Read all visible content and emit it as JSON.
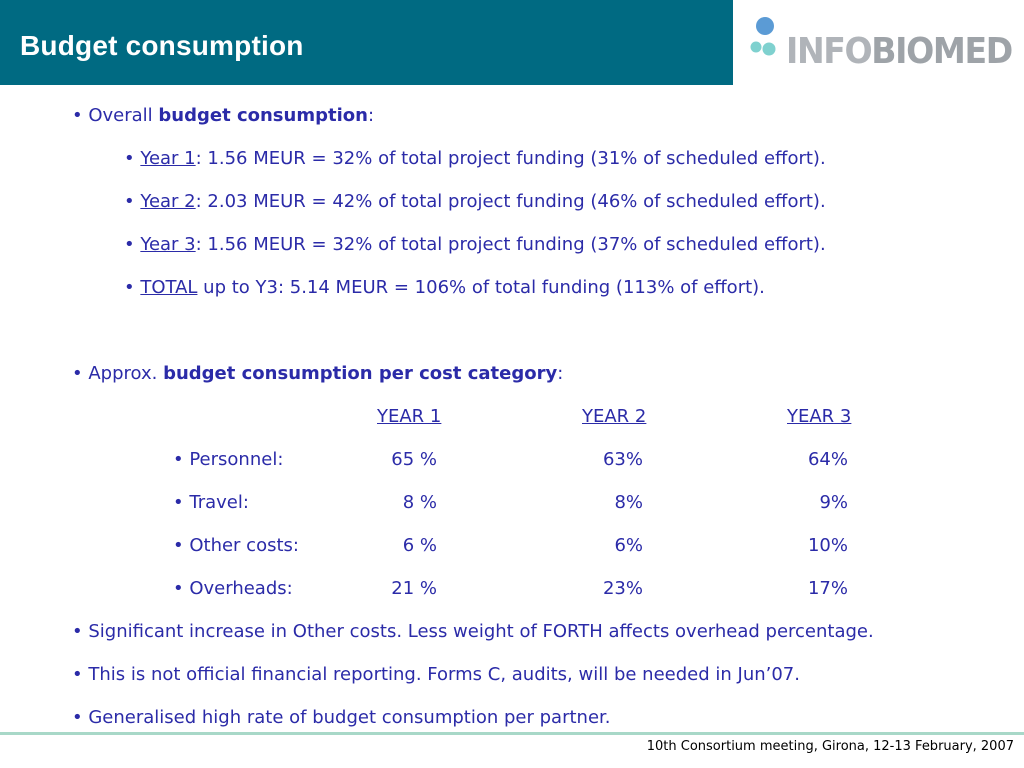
{
  "header": {
    "title": "Budget consumption"
  },
  "logo": {
    "text_light": "INFO",
    "text_bold": "BIOMED",
    "accent_blue": "#5b9bd5",
    "accent_teal": "#7fd1cf"
  },
  "colors": {
    "title_bar": "#006a82",
    "text": "#2b2ba8",
    "footer_line": "#a8d8c8"
  },
  "overall": {
    "prefix": "Overall ",
    "bold": "budget consumption",
    "suffix": ":",
    "items": [
      {
        "label": "Year 1",
        "text": ": 1.56 MEUR = 32% of total project funding (31% of scheduled effort)."
      },
      {
        "label": "Year 2",
        "text": ": 2.03 MEUR = 42% of total project funding (46% of scheduled effort)."
      },
      {
        "label": "Year 3",
        "text": ": 1.56 MEUR = 32% of total project funding (37% of scheduled effort)."
      },
      {
        "label": "TOTAL",
        "text": " up to Y3: 5.14 MEUR = 106% of total funding (113% of effort)."
      }
    ]
  },
  "category": {
    "prefix": "Approx. ",
    "bold": "budget consumption per cost category",
    "suffix": ":",
    "headers": [
      "YEAR 1",
      "YEAR 2",
      "YEAR 3"
    ],
    "rows": [
      {
        "label": "Personnel:",
        "y1": "65 %",
        "y2": "63%",
        "y3": "64%"
      },
      {
        "label": "Travel:",
        "y1": "8 %",
        "y2": "8%",
        "y3": "9%"
      },
      {
        "label": "Other costs:",
        "y1": "6 %",
        "y2": "6%",
        "y3": "10%"
      },
      {
        "label": "Overheads:",
        "y1": "21 %",
        "y2": "23%",
        "y3": "17%"
      }
    ]
  },
  "notes": [
    "Significant increase in Other costs. Less weight of FORTH affects overhead percentage.",
    "This is not official financial reporting. Forms C, audits, will be needed in Jun’07.",
    "Generalised high rate of budget consumption per partner."
  ],
  "footer": {
    "text": "10th Consortium meeting, Girona, 12-13 February, 2007"
  }
}
